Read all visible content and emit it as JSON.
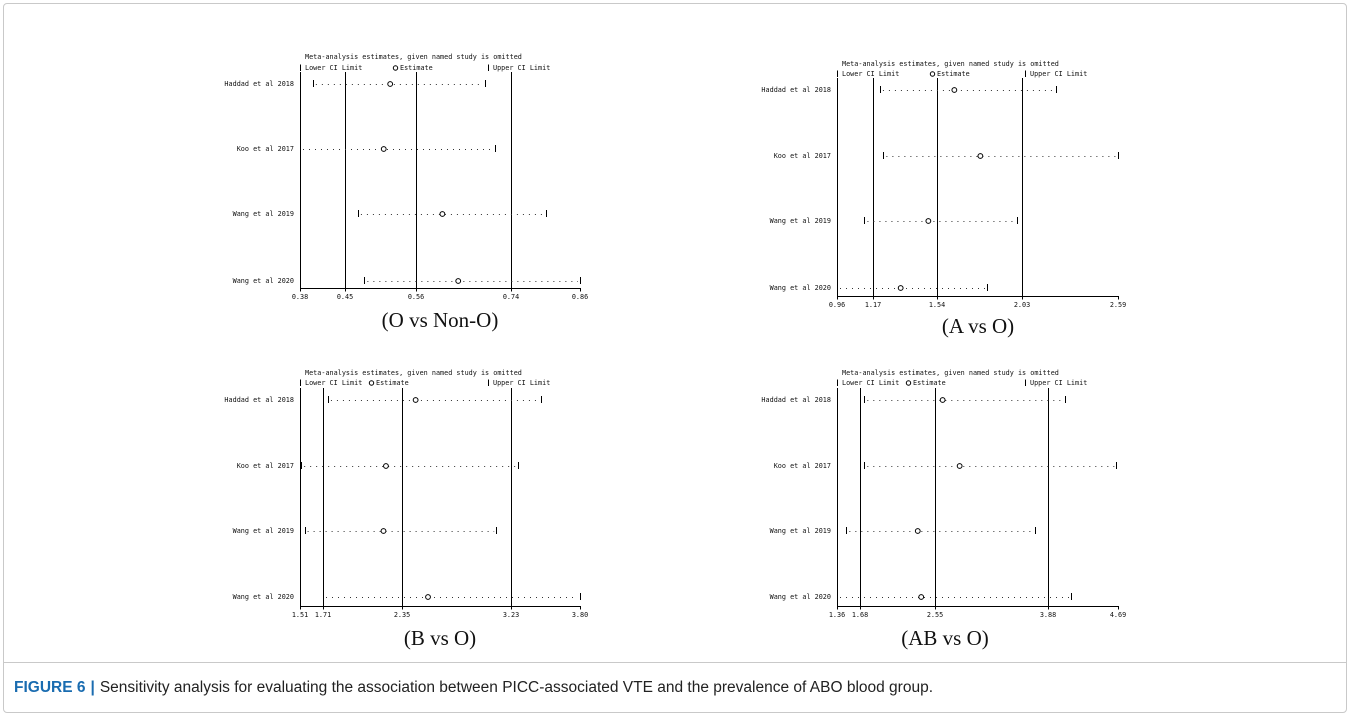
{
  "figure": {
    "label": "FIGURE 6",
    "separator": "|",
    "caption": "Sensitivity analysis for evaluating the association between PICC-associated VTE and the prevalence of ABO blood group.",
    "label_color": "#1a6cb0",
    "border_color": "#c9c9c9"
  },
  "chart_data": [
    {
      "type": "scatter",
      "title": "Meta-analysis estimates, given named study is omitted",
      "legend_position": "top",
      "categories": [
        "Haddad et al 2018",
        "Koo et al 2017",
        "Wang et al 2019",
        "Wang et al 2020"
      ],
      "series": [
        {
          "name": "Lower CI Limit",
          "values": [
            0.4,
            0.38,
            0.47,
            0.48
          ]
        },
        {
          "name": "Estimate",
          "values": [
            0.52,
            0.51,
            0.61,
            0.64
          ]
        },
        {
          "name": "Upper CI Limit",
          "values": [
            0.69,
            0.71,
            0.8,
            0.86
          ]
        }
      ],
      "xticks": [
        "0.38",
        "0.45",
        "0.56",
        "0.74",
        "0.86"
      ],
      "xlim": [
        0.38,
        0.86
      ],
      "reference_lines": [
        0.45,
        0.56,
        0.74
      ],
      "grid": false,
      "subtitle": "(O vs Non-O)"
    },
    {
      "type": "scatter",
      "title": "Meta-analysis estimates, given named study is omitted",
      "legend_position": "top",
      "categories": [
        "Haddad et al 2018",
        "Koo et al 2017",
        "Wang et al 2019",
        "Wang et al 2020"
      ],
      "series": [
        {
          "name": "Lower CI Limit",
          "values": [
            1.21,
            1.23,
            1.12,
            0.96
          ]
        },
        {
          "name": "Estimate",
          "values": [
            1.64,
            1.79,
            1.49,
            1.33
          ]
        },
        {
          "name": "Upper CI Limit",
          "values": [
            2.23,
            2.59,
            2.0,
            1.83
          ]
        }
      ],
      "xticks": [
        "0.96",
        "1.17",
        "1.54",
        "2.03",
        "2.59"
      ],
      "xlim": [
        0.96,
        2.59
      ],
      "reference_lines": [
        1.17,
        1.54,
        2.03
      ],
      "grid": false,
      "subtitle": "(A vs O)"
    },
    {
      "type": "scatter",
      "title": "Meta-analysis estimates, given named study is omitted",
      "legend_position": "top",
      "categories": [
        "Haddad et al 2018",
        "Koo et al 2017",
        "Wang et al 2019",
        "Wang et al 2020"
      ],
      "series": [
        {
          "name": "Lower CI Limit",
          "values": [
            1.75,
            1.52,
            1.55,
            1.71
          ]
        },
        {
          "name": "Estimate",
          "values": [
            2.46,
            2.22,
            2.2,
            2.56
          ]
        },
        {
          "name": "Upper CI Limit",
          "values": [
            3.48,
            3.29,
            3.11,
            3.8
          ]
        }
      ],
      "xticks": [
        "1.51",
        "1.71",
        "2.35",
        "3.23",
        "3.80"
      ],
      "xlim": [
        1.51,
        3.8
      ],
      "reference_lines": [
        1.71,
        2.35,
        3.23
      ],
      "grid": false,
      "subtitle": "(B vs O)"
    },
    {
      "type": "scatter",
      "title": "Meta-analysis estimates, given named study is omitted",
      "legend_position": "top",
      "categories": [
        "Haddad et al 2018",
        "Koo et al 2017",
        "Wang et al 2019",
        "Wang et al 2020"
      ],
      "series": [
        {
          "name": "Lower CI Limit",
          "values": [
            1.73,
            1.73,
            1.49,
            1.36
          ]
        },
        {
          "name": "Estimate",
          "values": [
            2.64,
            2.84,
            2.35,
            2.39
          ]
        },
        {
          "name": "Upper CI Limit",
          "values": [
            4.08,
            4.67,
            3.73,
            4.15
          ]
        }
      ],
      "xticks": [
        "1.36",
        "1.68",
        "2.55",
        "3.88",
        "4.69"
      ],
      "xlim": [
        1.36,
        4.69
      ],
      "reference_lines": [
        1.68,
        2.55,
        3.88
      ],
      "grid": false,
      "subtitle": "(AB vs O)"
    }
  ]
}
